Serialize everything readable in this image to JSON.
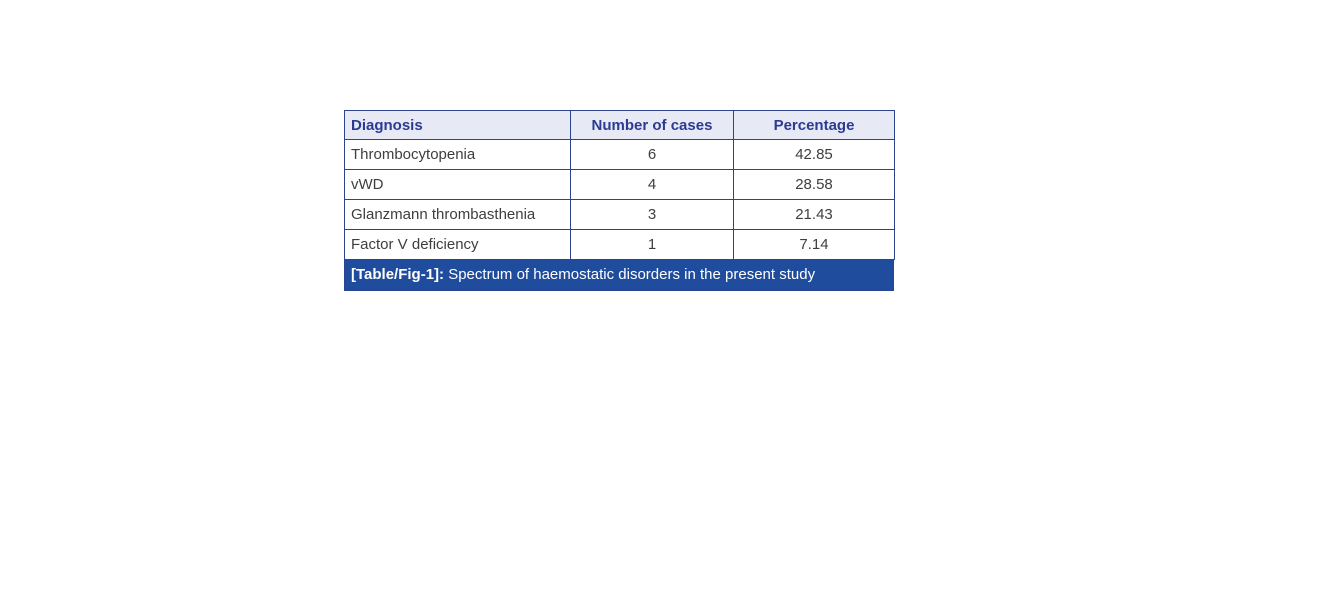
{
  "table": {
    "columns": {
      "diagnosis": "Diagnosis",
      "cases": "Number of cases",
      "percentage": "Percentage"
    },
    "rows": [
      {
        "diagnosis": "Thrombocytopenia",
        "cases": "6",
        "percentage": "42.85"
      },
      {
        "diagnosis": "vWD",
        "cases": "4",
        "percentage": "28.58"
      },
      {
        "diagnosis": "Glanzmann thrombasthenia",
        "cases": "3",
        "percentage": "21.43"
      },
      {
        "diagnosis": "Factor V deficiency",
        "cases": "1",
        "percentage": "7.14"
      }
    ],
    "caption": {
      "label": "[Table/Fig-1]:",
      "text": " Spectrum of haemostatic disorders in the present study"
    }
  },
  "colors": {
    "header_bg": "#e7e9f5",
    "header_text": "#2b3b94",
    "border": "#2c4390",
    "caption_bg": "#1f4c9c",
    "caption_text": "#ffffff",
    "body_text": "#3e3e3e",
    "page_bg": "#ffffff"
  },
  "chart_data": {
    "type": "table",
    "title": "[Table/Fig-1]: Spectrum of haemostatic disorders in the present study",
    "categories": [
      "Thrombocytopenia",
      "vWD",
      "Glanzmann thrombasthenia",
      "Factor V deficiency"
    ],
    "series": [
      {
        "name": "Number of cases",
        "values": [
          6,
          4,
          3,
          1
        ]
      },
      {
        "name": "Percentage",
        "values": [
          42.85,
          28.58,
          21.43,
          7.14
        ]
      }
    ]
  }
}
